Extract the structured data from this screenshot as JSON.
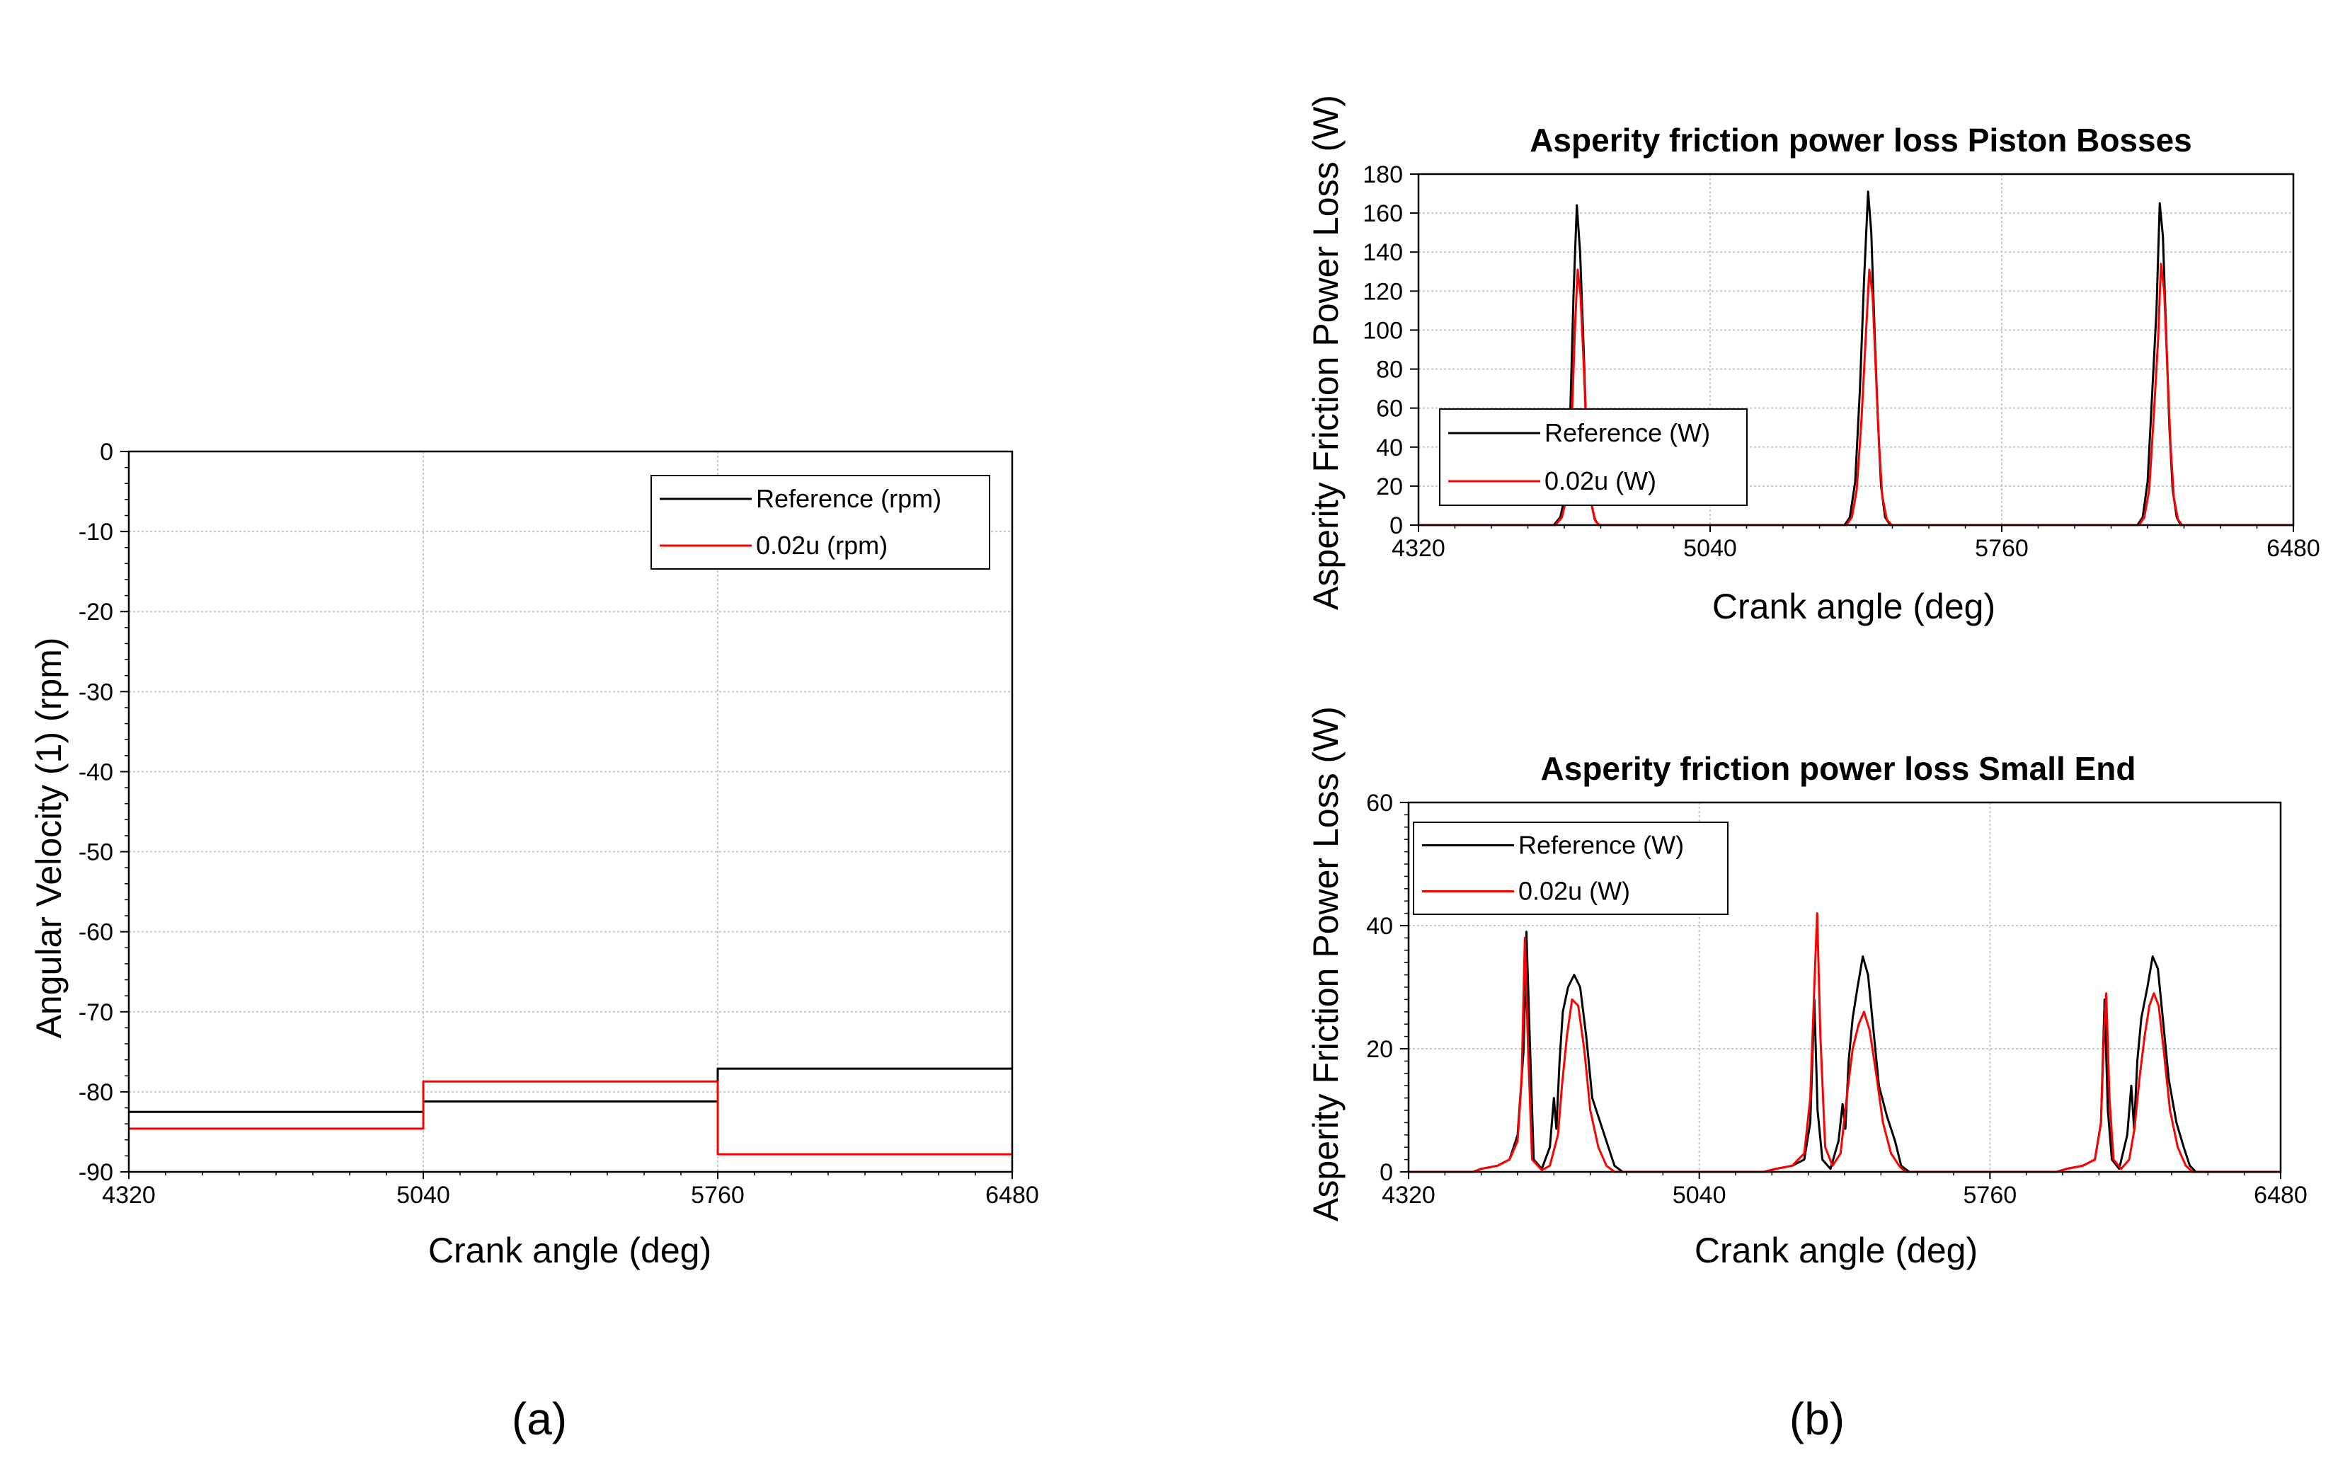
{
  "colors": {
    "reference": "#000000",
    "variant": "#ff0000",
    "grid": "#c8c8c8"
  },
  "captions": {
    "a": "(a)",
    "b": "(b)"
  },
  "chart_data": [
    {
      "type": "line",
      "id": "a",
      "title": "",
      "xlabel": "Crank angle (deg)",
      "ylabel": "Angular Velocity (1) (rpm)",
      "xlim": [
        4320,
        6480
      ],
      "ylim": [
        -90,
        0
      ],
      "xticks": [
        4320,
        5040,
        5760,
        6480
      ],
      "yticks": [
        0,
        -10,
        -20,
        -30,
        -40,
        -50,
        -60,
        -70,
        -80,
        -90
      ],
      "grid": true,
      "legend_position": "top-right",
      "series": [
        {
          "name": "Reference (rpm)",
          "color": "#000000",
          "points": [
            [
              4320,
              -82.5
            ],
            [
              5040,
              -82.5
            ],
            [
              5040,
              -81.2
            ],
            [
              5760,
              -81.2
            ],
            [
              5760,
              -77.1
            ],
            [
              6480,
              -77.1
            ]
          ]
        },
        {
          "name": "0.02u (rpm)",
          "color": "#ff0000",
          "points": [
            [
              4320,
              -84.6
            ],
            [
              5040,
              -84.6
            ],
            [
              5040,
              -78.7
            ],
            [
              5760,
              -78.7
            ],
            [
              5760,
              -87.8
            ],
            [
              6480,
              -87.8
            ]
          ]
        }
      ]
    },
    {
      "type": "line",
      "id": "b1",
      "title": "Asperity friction power loss Piston Bosses",
      "xlabel": "Crank angle (deg)",
      "ylabel": "Asperity Friction Power Loss (W)",
      "xlim": [
        4320,
        6480
      ],
      "ylim": [
        0,
        180
      ],
      "xticks": [
        4320,
        5040,
        5760,
        6480
      ],
      "yticks": [
        0,
        20,
        40,
        60,
        80,
        100,
        120,
        140,
        160,
        180
      ],
      "grid": true,
      "legend_position": "bottom-left",
      "series": [
        {
          "name": "Reference (W)",
          "color": "#000000",
          "points": [
            [
              4320,
              0
            ],
            [
              4654,
              0
            ],
            [
              4670,
              4
            ],
            [
              4685,
              18
            ],
            [
              4695,
              60
            ],
            [
              4703,
              120
            ],
            [
              4711,
              164
            ],
            [
              4719,
              140
            ],
            [
              4727,
              95
            ],
            [
              4735,
              45
            ],
            [
              4743,
              15
            ],
            [
              4755,
              3
            ],
            [
              4765,
              0
            ],
            [
              5372,
              0
            ],
            [
              5385,
              4
            ],
            [
              5398,
              22
            ],
            [
              5410,
              70
            ],
            [
              5420,
              125
            ],
            [
              5430,
              171
            ],
            [
              5438,
              150
            ],
            [
              5446,
              100
            ],
            [
              5454,
              55
            ],
            [
              5462,
              20
            ],
            [
              5472,
              4
            ],
            [
              5485,
              0
            ],
            [
              6095,
              0
            ],
            [
              6108,
              4
            ],
            [
              6120,
              22
            ],
            [
              6132,
              70
            ],
            [
              6142,
              110
            ],
            [
              6150,
              165
            ],
            [
              6158,
              148
            ],
            [
              6166,
              98
            ],
            [
              6174,
              50
            ],
            [
              6182,
              18
            ],
            [
              6192,
              4
            ],
            [
              6202,
              0
            ],
            [
              6480,
              0
            ]
          ]
        },
        {
          "name": "0.02u (W)",
          "color": "#ff0000",
          "points": [
            [
              4320,
              0
            ],
            [
              4658,
              0
            ],
            [
              4674,
              4
            ],
            [
              4688,
              16
            ],
            [
              4698,
              50
            ],
            [
              4706,
              100
            ],
            [
              4713,
              131
            ],
            [
              4720,
              118
            ],
            [
              4728,
              82
            ],
            [
              4736,
              40
            ],
            [
              4745,
              12
            ],
            [
              4757,
              2
            ],
            [
              4767,
              0
            ],
            [
              5376,
              0
            ],
            [
              5390,
              4
            ],
            [
              5402,
              18
            ],
            [
              5414,
              55
            ],
            [
              5424,
              95
            ],
            [
              5433,
              131
            ],
            [
              5441,
              118
            ],
            [
              5449,
              80
            ],
            [
              5457,
              42
            ],
            [
              5465,
              15
            ],
            [
              5476,
              3
            ],
            [
              5488,
              0
            ],
            [
              6099,
              0
            ],
            [
              6112,
              4
            ],
            [
              6124,
              18
            ],
            [
              6135,
              55
            ],
            [
              6146,
              95
            ],
            [
              6153,
              134
            ],
            [
              6161,
              120
            ],
            [
              6169,
              80
            ],
            [
              6177,
              40
            ],
            [
              6185,
              14
            ],
            [
              6195,
              3
            ],
            [
              6205,
              0
            ],
            [
              6480,
              0
            ]
          ]
        }
      ]
    },
    {
      "type": "line",
      "id": "b2",
      "title": "Asperity friction power loss Small End",
      "xlabel": "Crank angle (deg)",
      "ylabel": "Asperity Friction Power Loss (W)",
      "xlim": [
        4320,
        6480
      ],
      "ylim": [
        0,
        60
      ],
      "xticks": [
        4320,
        5040,
        5760,
        6480
      ],
      "yticks": [
        0,
        20,
        40,
        60
      ],
      "grid": true,
      "legend_position": "top-left",
      "series": [
        {
          "name": "Reference (W)",
          "color": "#000000",
          "points": [
            [
              4320,
              0
            ],
            [
              4480,
              0
            ],
            [
              4500,
              0.5
            ],
            [
              4540,
              1
            ],
            [
              4570,
              2
            ],
            [
              4590,
              6
            ],
            [
              4605,
              20
            ],
            [
              4612,
              39
            ],
            [
              4620,
              22
            ],
            [
              4630,
              2
            ],
            [
              4650,
              0.5
            ],
            [
              4670,
              4
            ],
            [
              4680,
              12
            ],
            [
              4686,
              7
            ],
            [
              4694,
              18
            ],
            [
              4702,
              26
            ],
            [
              4715,
              30
            ],
            [
              4730,
              32
            ],
            [
              4745,
              30
            ],
            [
              4760,
              22
            ],
            [
              4775,
              12
            ],
            [
              4795,
              8
            ],
            [
              4815,
              4
            ],
            [
              4830,
              1
            ],
            [
              4850,
              0
            ],
            [
              5200,
              0
            ],
            [
              5230,
              0.5
            ],
            [
              5270,
              1
            ],
            [
              5300,
              2
            ],
            [
              5315,
              8
            ],
            [
              5325,
              28
            ],
            [
              5333,
              10
            ],
            [
              5345,
              2
            ],
            [
              5365,
              0.5
            ],
            [
              5385,
              5
            ],
            [
              5395,
              11
            ],
            [
              5402,
              7
            ],
            [
              5410,
              18
            ],
            [
              5420,
              25
            ],
            [
              5432,
              30
            ],
            [
              5445,
              35
            ],
            [
              5458,
              32
            ],
            [
              5470,
              24
            ],
            [
              5485,
              14
            ],
            [
              5505,
              9
            ],
            [
              5525,
              5
            ],
            [
              5540,
              1
            ],
            [
              5560,
              0
            ],
            [
              5925,
              0
            ],
            [
              5950,
              0.5
            ],
            [
              5990,
              1
            ],
            [
              6020,
              2
            ],
            [
              6035,
              8
            ],
            [
              6044,
              28
            ],
            [
              6052,
              10
            ],
            [
              6062,
              2
            ],
            [
              6080,
              0.5
            ],
            [
              6100,
              6
            ],
            [
              6110,
              14
            ],
            [
              6117,
              7
            ],
            [
              6125,
              18
            ],
            [
              6135,
              25
            ],
            [
              6150,
              30
            ],
            [
              6163,
              35
            ],
            [
              6176,
              33
            ],
            [
              6188,
              25
            ],
            [
              6203,
              15
            ],
            [
              6222,
              8
            ],
            [
              6240,
              4
            ],
            [
              6255,
              1
            ],
            [
              6270,
              0
            ],
            [
              6480,
              0
            ]
          ]
        },
        {
          "name": "0.02u (W)",
          "color": "#ff0000",
          "points": [
            [
              4320,
              0
            ],
            [
              4480,
              0
            ],
            [
              4500,
              0.5
            ],
            [
              4540,
              1
            ],
            [
              4570,
              2
            ],
            [
              4590,
              5
            ],
            [
              4600,
              15
            ],
            [
              4608,
              38
            ],
            [
              4616,
              20
            ],
            [
              4626,
              2
            ],
            [
              4650,
              0.3
            ],
            [
              4670,
              1
            ],
            [
              4690,
              6
            ],
            [
              4700,
              14
            ],
            [
              4712,
              22
            ],
            [
              4725,
              28
            ],
            [
              4740,
              27
            ],
            [
              4755,
              20
            ],
            [
              4770,
              10
            ],
            [
              4790,
              4
            ],
            [
              4810,
              1
            ],
            [
              4830,
              0
            ],
            [
              5200,
              0
            ],
            [
              5230,
              0.5
            ],
            [
              5270,
              1
            ],
            [
              5300,
              3
            ],
            [
              5315,
              12
            ],
            [
              5325,
              30
            ],
            [
              5332,
              42
            ],
            [
              5340,
              22
            ],
            [
              5352,
              4
            ],
            [
              5370,
              1
            ],
            [
              5390,
              3
            ],
            [
              5405,
              12
            ],
            [
              5420,
              20
            ],
            [
              5435,
              24
            ],
            [
              5448,
              26
            ],
            [
              5462,
              23
            ],
            [
              5478,
              16
            ],
            [
              5495,
              8
            ],
            [
              5515,
              3
            ],
            [
              5535,
              1
            ],
            [
              5550,
              0
            ],
            [
              5925,
              0
            ],
            [
              5950,
              0.5
            ],
            [
              5990,
              1
            ],
            [
              6020,
              2
            ],
            [
              6035,
              8
            ],
            [
              6042,
              22
            ],
            [
              6048,
              29
            ],
            [
              6056,
              12
            ],
            [
              6066,
              2
            ],
            [
              6085,
              0.5
            ],
            [
              6105,
              2
            ],
            [
              6118,
              7
            ],
            [
              6130,
              15
            ],
            [
              6143,
              22
            ],
            [
              6155,
              27
            ],
            [
              6166,
              29
            ],
            [
              6178,
              27
            ],
            [
              6190,
              20
            ],
            [
              6206,
              10
            ],
            [
              6225,
              4
            ],
            [
              6245,
              1
            ],
            [
              6262,
              0
            ],
            [
              6480,
              0
            ]
          ]
        }
      ]
    }
  ]
}
